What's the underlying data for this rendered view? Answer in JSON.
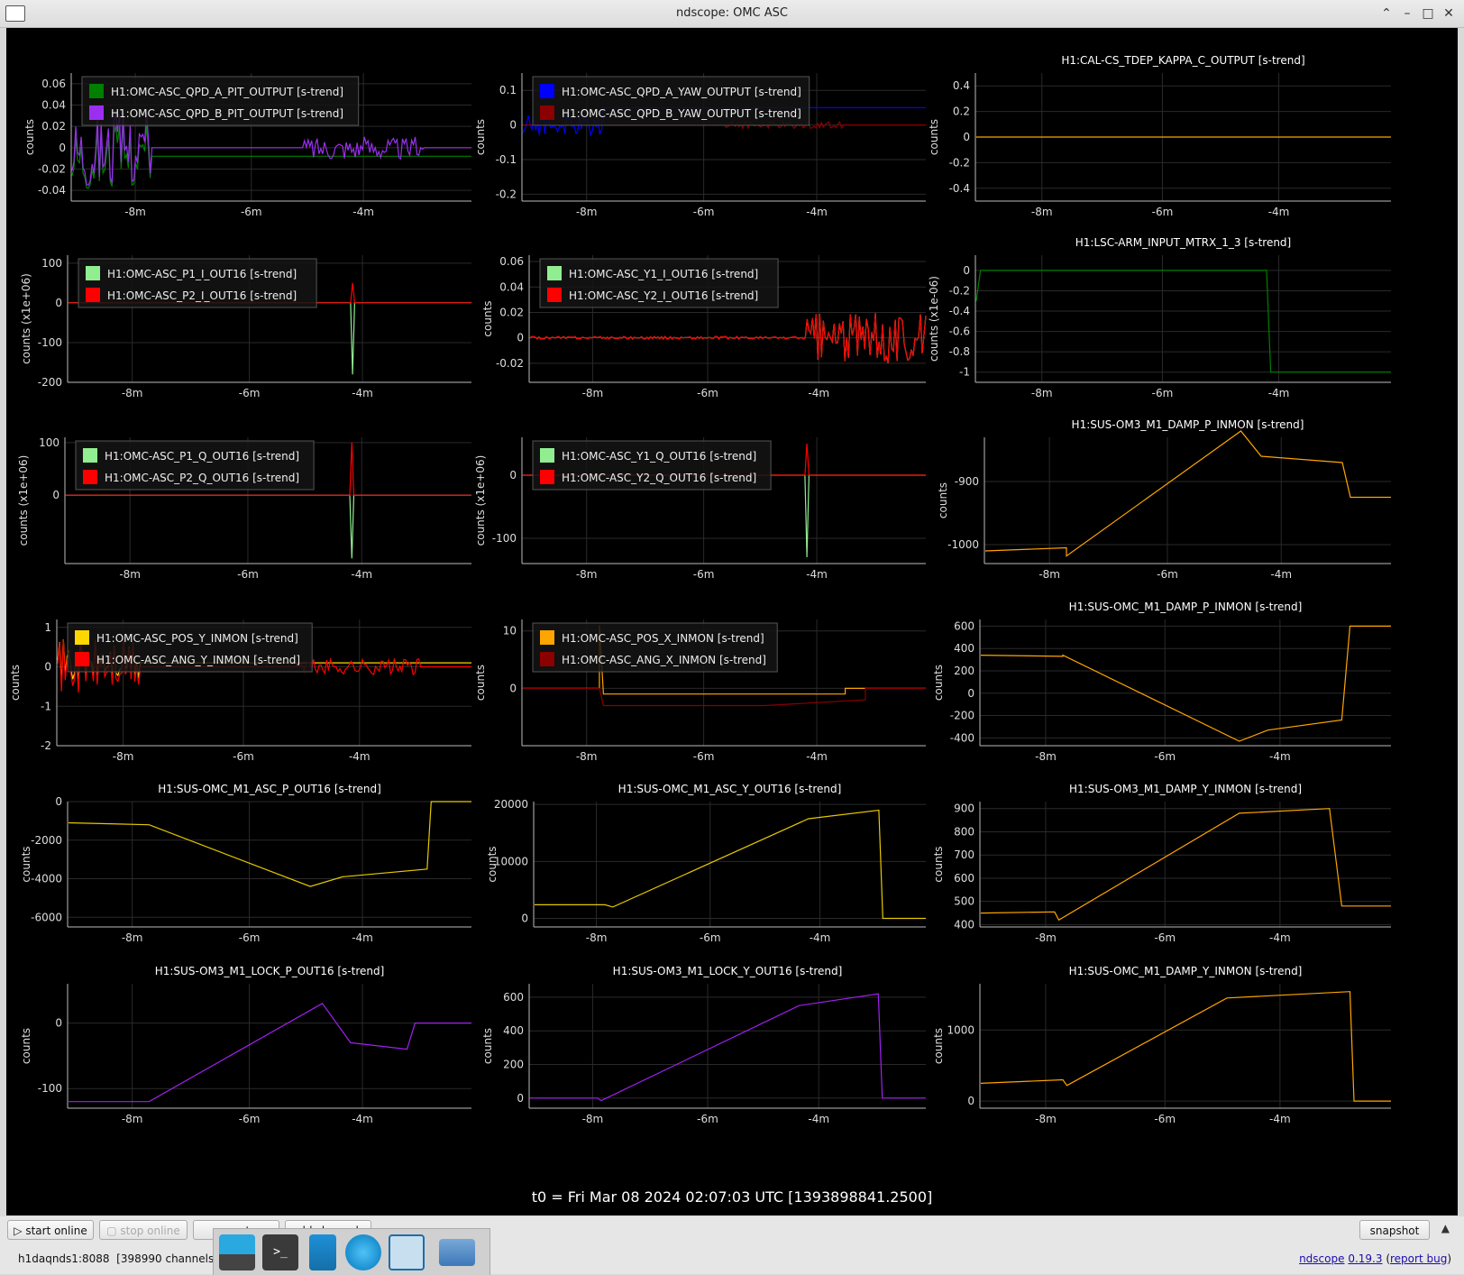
{
  "window": {
    "title": "ndscope: OMC ASC"
  },
  "colors": {
    "green": "#008000",
    "purple": "#9b2ff0",
    "blue": "#0000ff",
    "darkred": "#8b0000",
    "lightgreen": "#90ee90",
    "red": "#ff0000",
    "gold": "#ffd700",
    "orange": "#ffa500",
    "yellow": "#e6c800",
    "violet": "#a020f0"
  },
  "plots": [
    {
      "id": "p0",
      "title": "",
      "ylabel": "counts",
      "yticks": [
        0.06,
        0.04,
        0.02,
        0,
        -0.02,
        -0.04
      ],
      "ytick_labels": [
        "0.06",
        "0.04",
        "0.02",
        "0",
        "-0.02",
        "-0.04"
      ],
      "ylim": [
        -0.05,
        0.07
      ],
      "xticks": [
        "-8m",
        "-6m",
        "-4m"
      ],
      "legend": [
        {
          "label": "H1:OMC-ASC_QPD_A_PIT_OUTPUT [s-trend]",
          "color": "#008000"
        },
        {
          "label": "H1:OMC-ASC_QPD_B_PIT_OUTPUT [s-trend]",
          "color": "#9b2ff0"
        }
      ]
    },
    {
      "id": "p1",
      "title": "",
      "ylabel": "counts",
      "yticks": [
        0.1,
        0,
        -0.1,
        -0.2
      ],
      "ytick_labels": [
        "0.1",
        "0",
        "-0.1",
        "-0.2"
      ],
      "ylim": [
        -0.22,
        0.15
      ],
      "xticks": [
        "-8m",
        "-6m",
        "-4m"
      ],
      "legend": [
        {
          "label": "H1:OMC-ASC_QPD_A_YAW_OUTPUT [s-trend]",
          "color": "#0000ff"
        },
        {
          "label": "H1:OMC-ASC_QPD_B_YAW_OUTPUT [s-trend]",
          "color": "#8b0000"
        }
      ]
    },
    {
      "id": "p2",
      "title": "H1:CAL-CS_TDEP_KAPPA_C_OUTPUT [s-trend]",
      "ylabel": "counts",
      "yticks": [
        0.4,
        0.2,
        0,
        -0.2,
        -0.4
      ],
      "ytick_labels": [
        "0.4",
        "0.2",
        "0",
        "-0.2",
        "-0.4"
      ],
      "ylim": [
        -0.5,
        0.5
      ],
      "xticks": [
        "-8m",
        "-6m",
        "-4m"
      ],
      "legend": []
    },
    {
      "id": "p3",
      "title": "",
      "ylabel": "counts (x1e+06)",
      "yticks": [
        100,
        0,
        -100,
        -200
      ],
      "ytick_labels": [
        "100",
        "0",
        "-100",
        "-200"
      ],
      "ylim": [
        -200,
        120
      ],
      "xticks": [
        "-8m",
        "-6m",
        "-4m"
      ],
      "legend": [
        {
          "label": "H1:OMC-ASC_P1_I_OUT16 [s-trend]",
          "color": "#90ee90"
        },
        {
          "label": "H1:OMC-ASC_P2_I_OUT16 [s-trend]",
          "color": "#ff0000"
        }
      ]
    },
    {
      "id": "p4",
      "title": "",
      "ylabel": "counts",
      "yticks": [
        0.06,
        0.04,
        0.02,
        0,
        -0.02
      ],
      "ytick_labels": [
        "0.06",
        "0.04",
        "0.02",
        "0",
        "-0.02"
      ],
      "ylim": [
        -0.035,
        0.065
      ],
      "xticks": [
        "-8m",
        "-6m",
        "-4m"
      ],
      "legend": [
        {
          "label": "H1:OMC-ASC_Y1_I_OUT16 [s-trend]",
          "color": "#90ee90"
        },
        {
          "label": "H1:OMC-ASC_Y2_I_OUT16 [s-trend]",
          "color": "#ff0000"
        }
      ]
    },
    {
      "id": "p5",
      "title": "H1:LSC-ARM_INPUT_MTRX_1_3 [s-trend]",
      "ylabel": "counts (x1e-06)",
      "yticks": [
        0,
        -0.2,
        -0.4,
        -0.6,
        -0.8,
        -1
      ],
      "ytick_labels": [
        "0",
        "-0.2",
        "-0.4",
        "-0.6",
        "-0.8",
        "-1"
      ],
      "ylim": [
        -1.1,
        0.15
      ],
      "xticks": [
        "-8m",
        "-6m",
        "-4m"
      ],
      "legend": []
    },
    {
      "id": "p6",
      "title": "",
      "ylabel": "counts (x1e+06)",
      "yticks": [
        100,
        0
      ],
      "ytick_labels": [
        "100",
        "0"
      ],
      "ylim": [
        -130,
        110
      ],
      "xticks": [
        "-8m",
        "-6m",
        "-4m"
      ],
      "legend": [
        {
          "label": "H1:OMC-ASC_P1_Q_OUT16 [s-trend]",
          "color": "#90ee90"
        },
        {
          "label": "H1:OMC-ASC_P2_Q_OUT16 [s-trend]",
          "color": "#ff0000"
        }
      ]
    },
    {
      "id": "p7",
      "title": "",
      "ylabel": "counts (x1e+06)",
      "yticks": [
        0,
        -100
      ],
      "ytick_labels": [
        "0",
        "-100"
      ],
      "ylim": [
        -140,
        60
      ],
      "xticks": [
        "-8m",
        "-6m",
        "-4m"
      ],
      "legend": [
        {
          "label": "H1:OMC-ASC_Y1_Q_OUT16 [s-trend]",
          "color": "#90ee90"
        },
        {
          "label": "H1:OMC-ASC_Y2_Q_OUT16 [s-trend]",
          "color": "#ff0000"
        }
      ]
    },
    {
      "id": "p8",
      "title": "H1:SUS-OM3_M1_DAMP_P_INMON [s-trend]",
      "ylabel": "counts",
      "yticks": [
        -900,
        -1000
      ],
      "ytick_labels": [
        "-900",
        "-1000"
      ],
      "ylim": [
        -1030,
        -830
      ],
      "xticks": [
        "-8m",
        "-6m",
        "-4m"
      ],
      "legend": []
    },
    {
      "id": "p9",
      "title": "",
      "ylabel": "counts",
      "yticks": [
        1,
        0,
        -1,
        -2
      ],
      "ytick_labels": [
        "1",
        "0",
        "-1",
        "-2"
      ],
      "ylim": [
        -2,
        1.2
      ],
      "xticks": [
        "-8m",
        "-6m",
        "-4m"
      ],
      "legend": [
        {
          "label": "H1:OMC-ASC_POS_Y_INMON [s-trend]",
          "color": "#ffd700"
        },
        {
          "label": "H1:OMC-ASC_ANG_Y_INMON [s-trend]",
          "color": "#ff0000"
        }
      ]
    },
    {
      "id": "p10",
      "title": "",
      "ylabel": "counts",
      "yticks": [
        10,
        0
      ],
      "ytick_labels": [
        "10",
        "0"
      ],
      "ylim": [
        -10,
        12
      ],
      "xticks": [
        "-8m",
        "-6m",
        "-4m"
      ],
      "legend": [
        {
          "label": "H1:OMC-ASC_POS_X_INMON [s-trend]",
          "color": "#ffa500"
        },
        {
          "label": "H1:OMC-ASC_ANG_X_INMON [s-trend]",
          "color": "#8b0000"
        }
      ]
    },
    {
      "id": "p11",
      "title": "H1:SUS-OMC_M1_DAMP_P_INMON [s-trend]",
      "ylabel": "counts",
      "yticks": [
        600,
        400,
        200,
        0,
        -200,
        -400
      ],
      "ytick_labels": [
        "600",
        "400",
        "200",
        "0",
        "-200",
        "-400"
      ],
      "ylim": [
        -470,
        660
      ],
      "xticks": [
        "-8m",
        "-6m",
        "-4m"
      ],
      "legend": []
    },
    {
      "id": "p12",
      "title": "H1:SUS-OMC_M1_ASC_P_OUT16 [s-trend]",
      "ylabel": "counts",
      "yticks": [
        0,
        -2000,
        -4000,
        -6000
      ],
      "ytick_labels": [
        "0",
        "-2000",
        "-4000",
        "-6000"
      ],
      "ylim": [
        -6500,
        0
      ],
      "xticks": [
        "-8m",
        "-6m",
        "-4m"
      ],
      "legend": []
    },
    {
      "id": "p13",
      "title": "H1:SUS-OMC_M1_ASC_Y_OUT16 [s-trend]",
      "ylabel": "counts",
      "yticks": [
        20000,
        10000,
        0
      ],
      "ytick_labels": [
        "20000",
        "10000",
        "0"
      ],
      "ylim": [
        -1500,
        20500
      ],
      "xticks": [
        "-8m",
        "-6m",
        "-4m"
      ],
      "legend": []
    },
    {
      "id": "p14",
      "title": "H1:SUS-OM3_M1_DAMP_Y_INMON [s-trend]",
      "ylabel": "counts",
      "yticks": [
        900,
        800,
        700,
        600,
        500,
        400
      ],
      "ytick_labels": [
        "900",
        "800",
        "700",
        "600",
        "500",
        "400"
      ],
      "ylim": [
        390,
        930
      ],
      "xticks": [
        "-8m",
        "-6m",
        "-4m"
      ],
      "legend": []
    },
    {
      "id": "p15",
      "title": "H1:SUS-OM3_M1_LOCK_P_OUT16 [s-trend]",
      "ylabel": "counts",
      "yticks": [
        0,
        -100
      ],
      "ytick_labels": [
        "0",
        "-100"
      ],
      "ylim": [
        -130,
        60
      ],
      "xticks": [
        "-8m",
        "-6m",
        "-4m"
      ],
      "legend": []
    },
    {
      "id": "p16",
      "title": "H1:SUS-OM3_M1_LOCK_Y_OUT16 [s-trend]",
      "ylabel": "counts",
      "yticks": [
        600,
        400,
        200,
        0
      ],
      "ytick_labels": [
        "600",
        "400",
        "200",
        "0"
      ],
      "ylim": [
        -60,
        680
      ],
      "xticks": [
        "-8m",
        "-6m",
        "-4m"
      ],
      "legend": []
    },
    {
      "id": "p17",
      "title": "H1:SUS-OMC_M1_DAMP_Y_INMON [s-trend]",
      "ylabel": "counts",
      "yticks": [
        1000,
        0
      ],
      "ytick_labels": [
        "1000",
        "0"
      ],
      "ylim": [
        -100,
        1650
      ],
      "xticks": [
        "-8m",
        "-6m",
        "-4m"
      ],
      "legend": []
    }
  ],
  "t0_label": "t0 = Fri Mar 08 2024 02:07:03 UTC [1393898841.2500]",
  "buttons": {
    "start_online": "start online",
    "stop_online": "stop online",
    "reset": "reset",
    "add_channels": "add channels",
    "snapshot": "snapshot"
  },
  "status": {
    "server": "h1daqnds1:8088",
    "channels": "[398990 channels]"
  },
  "version": {
    "app": "ndscope",
    "number": "0.19.3",
    "report": "report bug"
  },
  "dock": {
    "items": [
      "desktop-icon",
      "terminal-icon",
      "files-icon",
      "browser-icon",
      "search-icon",
      "folder-icon"
    ]
  }
}
